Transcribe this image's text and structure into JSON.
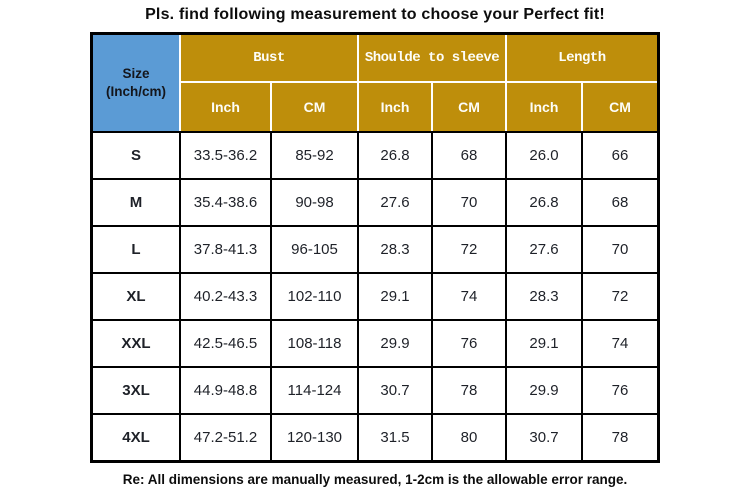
{
  "title": "Pls. find following measurement to choose your Perfect fit!",
  "colors": {
    "header_gold": "#BE8E0B",
    "corner_blue": "#5B9BD5"
  },
  "table": {
    "corner": {
      "line1": "Size",
      "line2": "(Inch/cm)"
    },
    "groups": [
      {
        "label": "Bust"
      },
      {
        "label": "Shoulde to sleeve"
      },
      {
        "label": "Length"
      }
    ],
    "unit_headers": [
      "Inch",
      "CM",
      "Inch",
      "CM",
      "Inch",
      "CM"
    ],
    "rows": [
      {
        "size": "S",
        "values": [
          "33.5-36.2",
          "85-92",
          "26.8",
          "68",
          "26.0",
          "66"
        ]
      },
      {
        "size": "M",
        "values": [
          "35.4-38.6",
          "90-98",
          "27.6",
          "70",
          "26.8",
          "68"
        ]
      },
      {
        "size": "L",
        "values": [
          "37.8-41.3",
          "96-105",
          "28.3",
          "72",
          "27.6",
          "70"
        ]
      },
      {
        "size": "XL",
        "values": [
          "40.2-43.3",
          "102-110",
          "29.1",
          "74",
          "28.3",
          "72"
        ]
      },
      {
        "size": "XXL",
        "values": [
          "42.5-46.5",
          "108-118",
          "29.9",
          "76",
          "29.1",
          "74"
        ]
      },
      {
        "size": "3XL",
        "values": [
          "44.9-48.8",
          "114-124",
          "30.7",
          "78",
          "29.9",
          "76"
        ]
      },
      {
        "size": "4XL",
        "values": [
          "47.2-51.2",
          "120-130",
          "31.5",
          "80",
          "30.7",
          "78"
        ]
      }
    ]
  },
  "footer": {
    "note": "Re: All dimensions are manually measured, 1-2cm is the allowable error range."
  }
}
